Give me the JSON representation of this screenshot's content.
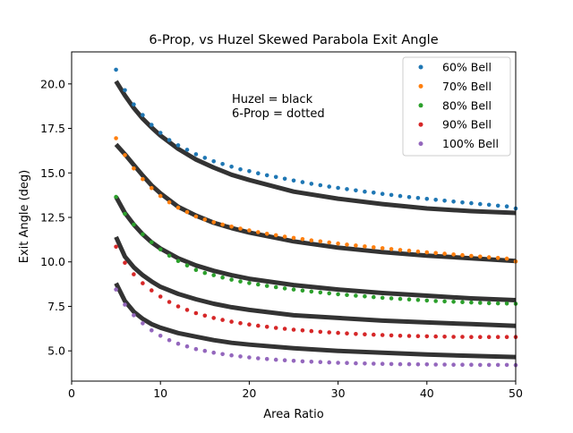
{
  "chart_data": {
    "type": "scatter",
    "title": "6-Prop, vs Huzel Skewed Parabola Exit Angle",
    "xlabel": "Area Ratio",
    "ylabel": "Exit Angle (deg)",
    "xlim": [
      0,
      50
    ],
    "ylim": [
      3.3,
      21.8
    ],
    "xticks": [
      0,
      10,
      20,
      30,
      40,
      50
    ],
    "xtick_labels": [
      "0",
      "10",
      "20",
      "30",
      "40",
      "50"
    ],
    "yticks": [
      5.0,
      7.5,
      10.0,
      12.5,
      15.0,
      17.5,
      20.0
    ],
    "ytick_labels": [
      "5.0",
      "7.5",
      "10.0",
      "12.5",
      "15.0",
      "17.5",
      "20.0"
    ],
    "grid": false,
    "legend_position": "top-right",
    "annotation": [
      "Huzel = black",
      "6-Prop = dotted"
    ],
    "x": [
      5,
      6,
      7,
      8,
      9,
      10,
      11,
      12,
      13,
      14,
      15,
      16,
      17,
      18,
      19,
      20,
      21,
      22,
      23,
      24,
      25,
      26,
      27,
      28,
      29,
      30,
      31,
      32,
      33,
      34,
      35,
      36,
      37,
      38,
      39,
      40,
      41,
      42,
      43,
      44,
      45,
      46,
      47,
      48,
      49,
      50
    ],
    "series": [
      {
        "name": "60% Bell",
        "color": "#1f77b4",
        "values": [
          20.8,
          19.65,
          18.85,
          18.25,
          17.7,
          17.25,
          16.85,
          16.55,
          16.3,
          16.05,
          15.85,
          15.65,
          15.5,
          15.35,
          15.2,
          15.1,
          14.98,
          14.87,
          14.77,
          14.67,
          14.57,
          14.48,
          14.39,
          14.31,
          14.23,
          14.16,
          14.09,
          14.02,
          13.95,
          13.89,
          13.82,
          13.76,
          13.7,
          13.64,
          13.59,
          13.54,
          13.49,
          13.44,
          13.39,
          13.34,
          13.3,
          13.25,
          13.21,
          13.16,
          13.12,
          13.0
        ]
      },
      {
        "name": "70% Bell",
        "color": "#ff7f0e",
        "values": [
          16.95,
          16.0,
          15.25,
          14.65,
          14.15,
          13.7,
          13.35,
          13.05,
          12.8,
          12.55,
          12.38,
          12.23,
          12.1,
          11.98,
          11.87,
          11.77,
          11.67,
          11.58,
          11.5,
          11.42,
          11.35,
          11.28,
          11.21,
          11.15,
          11.09,
          11.03,
          10.97,
          10.92,
          10.87,
          10.82,
          10.77,
          10.72,
          10.67,
          10.63,
          10.58,
          10.54,
          10.5,
          10.46,
          10.42,
          10.38,
          10.34,
          10.3,
          10.26,
          10.22,
          10.18,
          10.02
        ]
      },
      {
        "name": "80% Bell",
        "color": "#2ca02c",
        "values": [
          13.65,
          12.7,
          12.1,
          11.55,
          11.1,
          10.7,
          10.35,
          10.05,
          9.8,
          9.55,
          9.38,
          9.25,
          9.12,
          9.0,
          8.9,
          8.81,
          8.73,
          8.65,
          8.58,
          8.51,
          8.45,
          8.39,
          8.33,
          8.28,
          8.23,
          8.18,
          8.14,
          8.1,
          8.06,
          8.02,
          7.98,
          7.95,
          7.92,
          7.89,
          7.86,
          7.83,
          7.8,
          7.78,
          7.76,
          7.74,
          7.72,
          7.7,
          7.68,
          7.67,
          7.66,
          7.65
        ]
      },
      {
        "name": "90% Bell",
        "color": "#d62728",
        "values": [
          10.85,
          9.95,
          9.3,
          8.8,
          8.4,
          8.05,
          7.75,
          7.5,
          7.3,
          7.12,
          6.98,
          6.85,
          6.74,
          6.64,
          6.56,
          6.48,
          6.41,
          6.35,
          6.29,
          6.24,
          6.19,
          6.15,
          6.11,
          6.07,
          6.04,
          6.01,
          5.98,
          5.95,
          5.93,
          5.91,
          5.89,
          5.87,
          5.85,
          5.84,
          5.83,
          5.82,
          5.81,
          5.8,
          5.79,
          5.79,
          5.78,
          5.78,
          5.78,
          5.78,
          5.78,
          5.78
        ]
      },
      {
        "name": "100% Bell",
        "color": "#9467bd",
        "values": [
          8.45,
          7.6,
          7.0,
          6.55,
          6.15,
          5.85,
          5.6,
          5.4,
          5.25,
          5.1,
          5.0,
          4.9,
          4.82,
          4.75,
          4.69,
          4.63,
          4.58,
          4.54,
          4.5,
          4.47,
          4.44,
          4.41,
          4.39,
          4.37,
          4.35,
          4.33,
          4.32,
          4.3,
          4.29,
          4.28,
          4.27,
          4.26,
          4.25,
          4.25,
          4.24,
          4.24,
          4.23,
          4.23,
          4.22,
          4.22,
          4.22,
          4.21,
          4.21,
          4.21,
          4.21,
          4.2
        ]
      }
    ],
    "reference_curves": {
      "color": "#333333",
      "x": [
        5,
        6,
        7,
        8,
        9,
        10,
        12,
        14,
        16,
        18,
        20,
        25,
        30,
        35,
        40,
        45,
        50
      ],
      "curves": [
        [
          20.15,
          19.35,
          18.65,
          18.05,
          17.55,
          17.1,
          16.35,
          15.75,
          15.3,
          14.9,
          14.6,
          13.95,
          13.55,
          13.25,
          13.0,
          12.85,
          12.75
        ],
        [
          16.6,
          16.05,
          15.45,
          14.85,
          14.3,
          13.85,
          13.1,
          12.6,
          12.2,
          11.9,
          11.65,
          11.15,
          10.8,
          10.55,
          10.35,
          10.2,
          10.05
        ],
        [
          13.65,
          12.75,
          12.1,
          11.55,
          11.1,
          10.75,
          10.2,
          9.8,
          9.5,
          9.25,
          9.05,
          8.7,
          8.45,
          8.25,
          8.1,
          7.95,
          7.85
        ],
        [
          11.4,
          10.3,
          9.7,
          9.25,
          8.9,
          8.6,
          8.2,
          7.9,
          7.65,
          7.45,
          7.3,
          7.0,
          6.85,
          6.7,
          6.6,
          6.5,
          6.4
        ],
        [
          8.8,
          7.8,
          7.2,
          6.8,
          6.5,
          6.3,
          6.0,
          5.8,
          5.6,
          5.45,
          5.35,
          5.15,
          5.0,
          4.9,
          4.8,
          4.72,
          4.65
        ]
      ]
    }
  }
}
